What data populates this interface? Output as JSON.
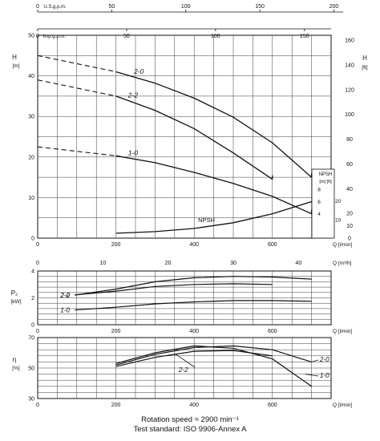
{
  "top_scales": {
    "usgpm": {
      "unit": "U.S.g.p.m.",
      "ticks": [
        "0",
        "50",
        "100",
        "150",
        "200"
      ]
    },
    "impgpm": {
      "unit": "Imp.g.p.m.",
      "ticks": [
        "0",
        "50",
        "100",
        "150"
      ]
    }
  },
  "captions": {
    "line1": "Rotation speed ≈ 2900 min⁻¹",
    "line2": "Test standard: ISO 9906-Annex A"
  },
  "chart_data": [
    {
      "type": "line",
      "id": "head",
      "ylabel": "H",
      "ylabel_unit": "[m]",
      "y2label": "H",
      "y2label_unit": "[ft]",
      "xlim": [
        0,
        750
      ],
      "ylim": [
        0,
        50
      ],
      "yticks": [
        0,
        10,
        20,
        30,
        40,
        50
      ],
      "y2lim": [
        0,
        164
      ],
      "y2ticks": [
        0,
        10,
        20,
        40,
        60,
        80,
        100,
        120,
        140,
        160
      ],
      "xticks": [
        0,
        200,
        400,
        600
      ],
      "xlabel": "Q [l/min]",
      "x2ticks": [
        0,
        10,
        20,
        30,
        40
      ],
      "x2label": "Q [m³/h]",
      "grid": true,
      "series": [
        {
          "name": "2-0",
          "dashed_x": [
            0,
            200
          ],
          "dashed_y": [
            45,
            41
          ],
          "x": [
            200,
            300,
            400,
            500,
            600,
            700
          ],
          "y": [
            41,
            38.2,
            34.5,
            29.8,
            23.5,
            15
          ]
        },
        {
          "name": "2-2",
          "dashed_x": [
            0,
            200
          ],
          "dashed_y": [
            39,
            35
          ],
          "x": [
            200,
            300,
            400,
            500,
            600
          ],
          "y": [
            35,
            31.5,
            27,
            21,
            14.5
          ]
        },
        {
          "name": "1-0",
          "dashed_x": [
            0,
            200
          ],
          "dashed_y": [
            22.5,
            20.3
          ],
          "x": [
            200,
            300,
            400,
            500,
            600,
            700
          ],
          "y": [
            20.3,
            18.6,
            16.2,
            13.5,
            10.3,
            6
          ]
        }
      ],
      "npsh": {
        "name": "NPSH",
        "axis_label": "NPSH",
        "axis_units": "[m] [ft]",
        "m_ticks": [
          4,
          6,
          8
        ],
        "ft_ticks": [
          10,
          20
        ],
        "x": [
          200,
          300,
          400,
          500,
          600,
          700
        ],
        "y": [
          1.2,
          1.6,
          2.4,
          3.8,
          6,
          9
        ]
      }
    },
    {
      "type": "line",
      "id": "power",
      "ylabel": "P₂",
      "ylabel_unit": "[kW]",
      "xlim": [
        0,
        750
      ],
      "ylim": [
        0,
        4
      ],
      "yticks": [
        0,
        2,
        4
      ],
      "xticks": [
        0,
        200,
        400,
        600
      ],
      "xlabel": "Q [l/min]",
      "grid": true,
      "series": [
        {
          "name": "2-0",
          "x": [
            200,
            300,
            400,
            500,
            600,
            700
          ],
          "y": [
            2.65,
            3.2,
            3.5,
            3.6,
            3.55,
            3.4
          ]
        },
        {
          "name": "2-2",
          "x": [
            200,
            300,
            400,
            500,
            600
          ],
          "y": [
            2.5,
            2.85,
            3.0,
            3.05,
            3.0
          ]
        },
        {
          "name": "1-0",
          "x": [
            200,
            300,
            400,
            500,
            600,
            700
          ],
          "y": [
            1.3,
            1.55,
            1.7,
            1.8,
            1.8,
            1.75
          ]
        }
      ]
    },
    {
      "type": "line",
      "id": "efficiency",
      "ylabel": "η",
      "ylabel_unit": "[%]",
      "xlim": [
        0,
        750
      ],
      "ylim": [
        30,
        70
      ],
      "yticks": [
        30,
        50,
        70
      ],
      "xticks": [
        0,
        200,
        400,
        600
      ],
      "xlabel": "Q [l/min]",
      "grid": true,
      "series": [
        {
          "name": "2-0",
          "x": [
            200,
            300,
            400,
            500,
            600,
            700
          ],
          "y": [
            52,
            59,
            63.5,
            64.5,
            62,
            54
          ]
        },
        {
          "name": "2-2",
          "x": [
            200,
            300,
            400,
            500,
            600
          ],
          "y": [
            51,
            57,
            61,
            61.5,
            58
          ]
        },
        {
          "name": "1-0",
          "x": [
            200,
            300,
            400,
            500,
            600,
            700
          ],
          "y": [
            53,
            60,
            64.5,
            63,
            56,
            38
          ]
        }
      ]
    }
  ]
}
